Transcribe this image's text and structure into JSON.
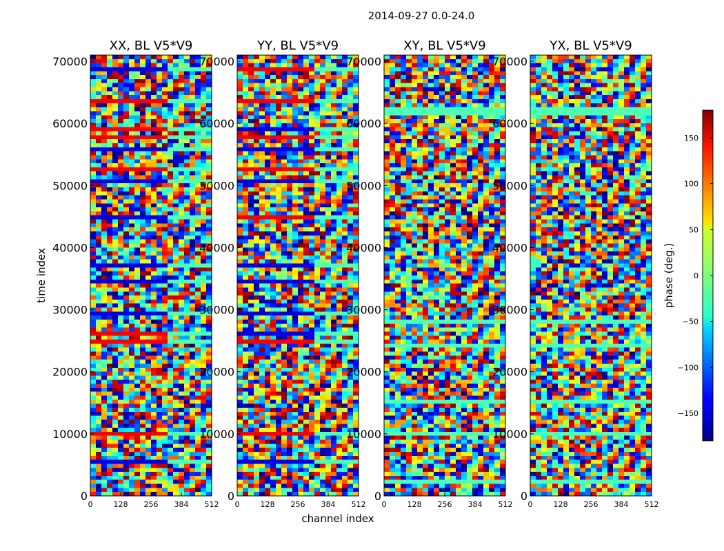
{
  "figure_title": "2014-09-27 0.0-24.0",
  "chart_data": {
    "type": "heatmap",
    "title": "2014-09-27 0.0-24.0",
    "xlabel": "channel index",
    "ylabel": "time index",
    "xlim": [
      0,
      512
    ],
    "ylim": [
      0,
      71000
    ],
    "x_ticks": [
      0,
      128,
      256,
      384,
      512
    ],
    "y_ticks": [
      0,
      10000,
      20000,
      30000,
      40000,
      50000,
      60000,
      70000
    ],
    "panels": [
      {
        "title": "XX, BL V5*V9"
      },
      {
        "title": "YY, BL V5*V9"
      },
      {
        "title": "XY, BL V5*V9"
      },
      {
        "title": "YX, BL V5*V9"
      }
    ],
    "colorbar": {
      "label": "phase (deg.)",
      "range": [
        -180,
        180
      ],
      "ticks": [
        -150,
        -100,
        -50,
        0,
        50,
        100,
        150
      ],
      "tick_labels": [
        "−150",
        "−100",
        "−50",
        "0",
        "50",
        "100",
        "150"
      ],
      "colormap": "jet"
    }
  }
}
